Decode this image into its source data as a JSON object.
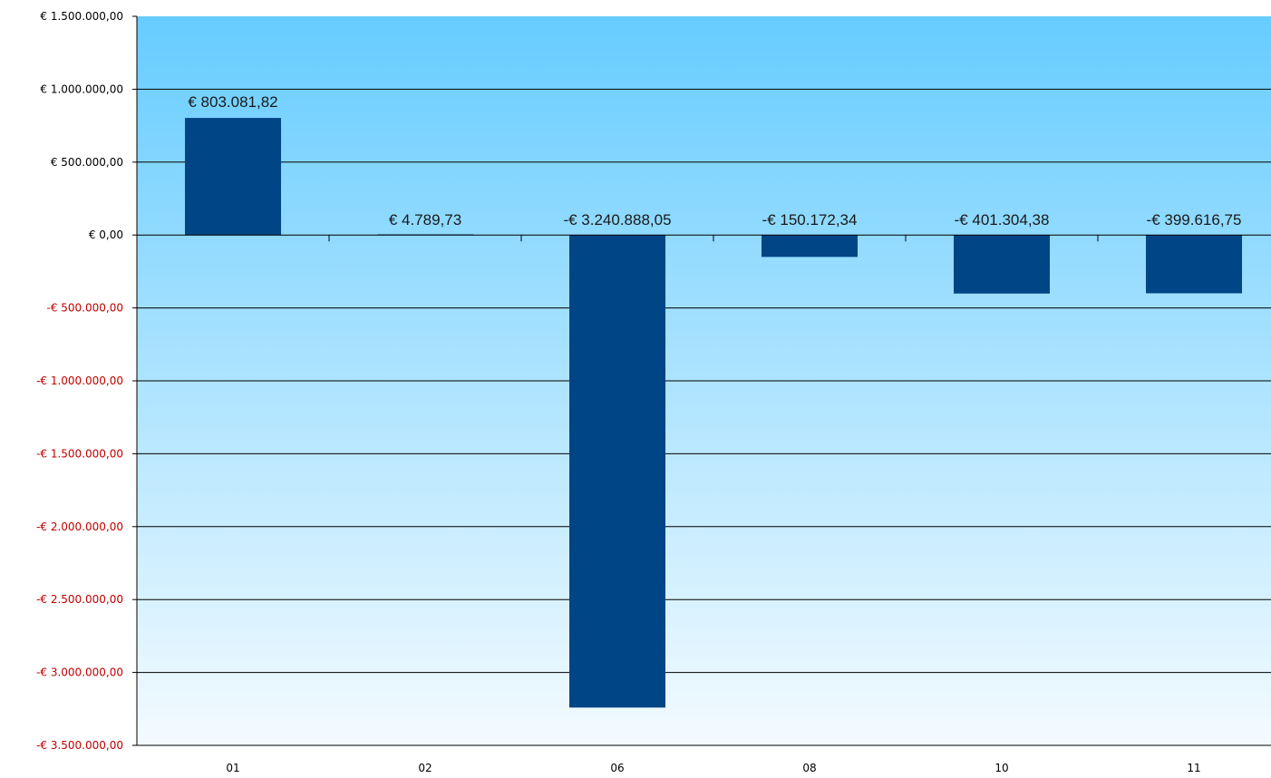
{
  "chart_data": {
    "type": "bar",
    "categories": [
      "01",
      "02",
      "06",
      "08",
      "10",
      "11"
    ],
    "values": [
      803081.82,
      4789.73,
      -3240888.05,
      -150172.34,
      -401304.38,
      -399616.75
    ],
    "data_labels": [
      "€ 803.081,82",
      "€ 4.789,73",
      "-€ 3.240.888,05",
      "-€ 150.172,34",
      "-€ 401.304,38",
      "-€ 399.616,75"
    ],
    "ylim": [
      -3500000,
      1500000
    ],
    "yticks": [
      1500000,
      1000000,
      500000,
      0,
      -500000,
      -1000000,
      -1500000,
      -2000000,
      -2500000,
      -3000000,
      -3500000
    ],
    "ytick_labels": [
      "€ 1.500.000,00",
      "€ 1.000.000,00",
      "€ 500.000,00",
      "€ 0,00",
      "-€ 500.000,00",
      "-€ 1.000.000,00",
      "-€ 1.500.000,00",
      "-€ 2.000.000,00",
      "-€ 2.500.000,00",
      "-€ 3.000.000,00",
      "-€ 3.500.000,00"
    ],
    "grid": true,
    "legend": "none"
  },
  "colors": {
    "bar": "#004585",
    "background_top": "#66ccff",
    "background_bottom": "#f4fbff",
    "gridline": "#000000",
    "negative_tick_label": "#c00000",
    "positive_tick_label": "#000000"
  }
}
